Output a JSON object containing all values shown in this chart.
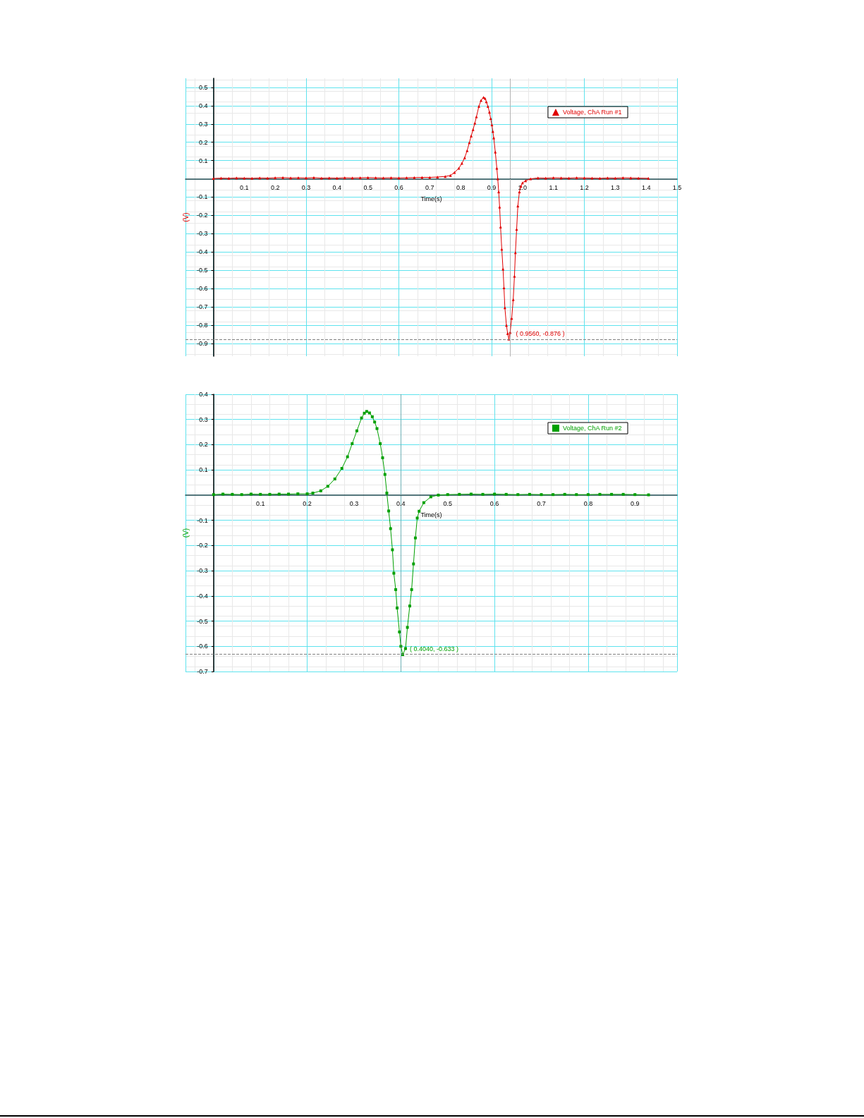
{
  "chart_data": [
    {
      "type": "line",
      "xlabel": "Time(s)",
      "ylabel": "(V)",
      "xlim": [
        -0.09,
        1.5
      ],
      "ylim": [
        -0.97,
        0.55
      ],
      "xticks": [
        0.1,
        0.2,
        0.3,
        0.4,
        0.5,
        0.6,
        0.7,
        0.8,
        0.9,
        {
          "value": 1,
          "label": "1.0"
        },
        1.1,
        1.2,
        1.3,
        1.4,
        1.5
      ],
      "yticks": [
        0.5,
        0.4,
        0.3,
        0.2,
        0.1,
        -0.1,
        -0.2,
        -0.3,
        -0.4,
        -0.5,
        -0.6,
        -0.7,
        -0.8,
        -0.9
      ],
      "grid": true,
      "legend": "top right",
      "marker": "triangle",
      "series": [
        {
          "name": "Voltage, ChA Run #1",
          "color": "#e00000",
          "x": [
            0,
            0.025,
            0.05,
            0.075,
            0.1,
            0.125,
            0.15,
            0.175,
            0.2,
            0.225,
            0.25,
            0.275,
            0.3,
            0.325,
            0.35,
            0.375,
            0.4,
            0.425,
            0.45,
            0.475,
            0.5,
            0.525,
            0.55,
            0.575,
            0.6,
            0.625,
            0.65,
            0.675,
            0.7,
            0.725,
            0.75,
            0.767,
            0.78,
            0.794,
            0.804,
            0.813,
            0.821,
            0.828,
            0.834,
            0.84,
            0.846,
            0.851,
            0.859,
            0.866,
            0.874,
            0.879,
            0.883,
            0.888,
            0.893,
            0.897,
            0.901,
            0.904,
            0.907,
            0.912,
            0.917,
            0.92,
            0.923,
            0.926,
            0.929,
            0.933,
            0.937,
            0.94,
            0.943,
            0.948,
            0.952,
            0.956,
            0.96,
            0.965,
            0.97,
            0.974,
            0.977,
            0.981,
            0.985,
            0.99,
            0.995,
            1.0,
            1.01,
            1.026,
            1.05,
            1.075,
            1.1,
            1.125,
            1.15,
            1.175,
            1.2,
            1.225,
            1.25,
            1.275,
            1.3,
            1.325,
            1.35,
            1.375,
            1.407
          ],
          "values": [
            0.002,
            0.004,
            0.003,
            0.005,
            0.004,
            0.003,
            0.005,
            0.004,
            0.006,
            0.007,
            0.005,
            0.006,
            0.005,
            0.007,
            0.004,
            0.005,
            0.004,
            0.006,
            0.005,
            0.006,
            0.007,
            0.006,
            0.005,
            0.006,
            0.005,
            0.006,
            0.007,
            0.008,
            0.008,
            0.01,
            0.013,
            0.019,
            0.035,
            0.058,
            0.085,
            0.115,
            0.155,
            0.198,
            0.235,
            0.269,
            0.305,
            0.34,
            0.397,
            0.429,
            0.446,
            0.44,
            0.422,
            0.397,
            0.365,
            0.33,
            0.295,
            0.26,
            0.224,
            0.147,
            0.058,
            0,
            -0.071,
            -0.154,
            -0.263,
            -0.385,
            -0.494,
            -0.596,
            -0.705,
            -0.801,
            -0.846,
            -0.876,
            -0.84,
            -0.763,
            -0.66,
            -0.532,
            -0.404,
            -0.276,
            -0.148,
            -0.071,
            -0.04,
            -0.022,
            -0.01,
            0,
            0.005,
            0.004,
            0.006,
            0.005,
            0.004,
            0.006,
            0.005,
            0.004,
            0.003,
            0.005,
            0.004,
            0.006,
            0.005,
            0.004,
            0.003
          ]
        }
      ],
      "ref_lines": [
        {
          "axis": "x",
          "value": 0.956,
          "color": "#808080",
          "line_style": "dotted"
        },
        {
          "axis": "y",
          "value": -0.876,
          "color": "#808080",
          "line_style": "dashed"
        }
      ],
      "annotations": [
        {
          "text": "( 0.9560, -0.876 )",
          "x": 0.956,
          "y": -0.876
        }
      ]
    },
    {
      "type": "line",
      "xlabel": "Time(s)",
      "ylabel": "(V)",
      "xlim": [
        -0.06,
        0.99
      ],
      "ylim": [
        -0.7,
        0.4
      ],
      "xticks": [
        0.1,
        0.2,
        0.3,
        0.4,
        0.5,
        0.6,
        0.7,
        0.8,
        0.9
      ],
      "yticks": [
        0.4,
        0.3,
        0.2,
        0.1,
        -0.1,
        -0.2,
        -0.3,
        -0.4,
        -0.5,
        -0.6,
        -0.7
      ],
      "grid": true,
      "legend": "top right",
      "marker": "square",
      "series": [
        {
          "name": "Voltage, ChA Run #2",
          "color": "#00a000",
          "x": [
            0,
            0.02,
            0.04,
            0.06,
            0.08,
            0.1,
            0.12,
            0.14,
            0.16,
            0.18,
            0.2,
            0.212,
            0.229,
            0.244,
            0.259,
            0.274,
            0.286,
            0.296,
            0.306,
            0.316,
            0.322,
            0.327,
            0.333,
            0.339,
            0.344,
            0.349,
            0.356,
            0.361,
            0.366,
            0.37,
            0.374,
            0.378,
            0.382,
            0.385,
            0.389,
            0.392,
            0.397,
            0.4,
            0.404,
            0.41,
            0.414,
            0.419,
            0.423,
            0.427,
            0.431,
            0.435,
            0.439,
            0.449,
            0.464,
            0.48,
            0.5,
            0.525,
            0.55,
            0.575,
            0.6,
            0.625,
            0.65,
            0.675,
            0.7,
            0.725,
            0.75,
            0.775,
            0.8,
            0.825,
            0.85,
            0.875,
            0.9,
            0.929
          ],
          "values": [
            0.002,
            0.004,
            0.003,
            0.002,
            0.004,
            0.003,
            0.003,
            0.004,
            0.004,
            0.005,
            0.005,
            0.008,
            0.017,
            0.035,
            0.064,
            0.106,
            0.152,
            0.204,
            0.255,
            0.306,
            0.325,
            0.332,
            0.326,
            0.311,
            0.29,
            0.264,
            0.204,
            0.148,
            0.082,
            0.008,
            -0.063,
            -0.133,
            -0.217,
            -0.31,
            -0.375,
            -0.448,
            -0.543,
            -0.6,
            -0.633,
            -0.609,
            -0.525,
            -0.44,
            -0.375,
            -0.273,
            -0.17,
            -0.091,
            -0.064,
            -0.03,
            -0.007,
            0,
            0.002,
            0.003,
            0.004,
            0.003,
            0.004,
            0.003,
            0.002,
            0.003,
            0.002,
            0.002,
            0.003,
            0.002,
            0.002,
            0.003,
            0.003,
            0.003,
            0.002,
            0.001
          ]
        }
      ],
      "ref_lines": [
        {
          "axis": "x",
          "value": 0.404,
          "color": "#808080",
          "line_style": "dotted"
        },
        {
          "axis": "y",
          "value": -0.633,
          "color": "#808080",
          "line_style": "dashed"
        }
      ],
      "annotations": [
        {
          "text": "( 0.4040, -0.633 )",
          "x": 0.404,
          "y": -0.633
        }
      ]
    }
  ]
}
